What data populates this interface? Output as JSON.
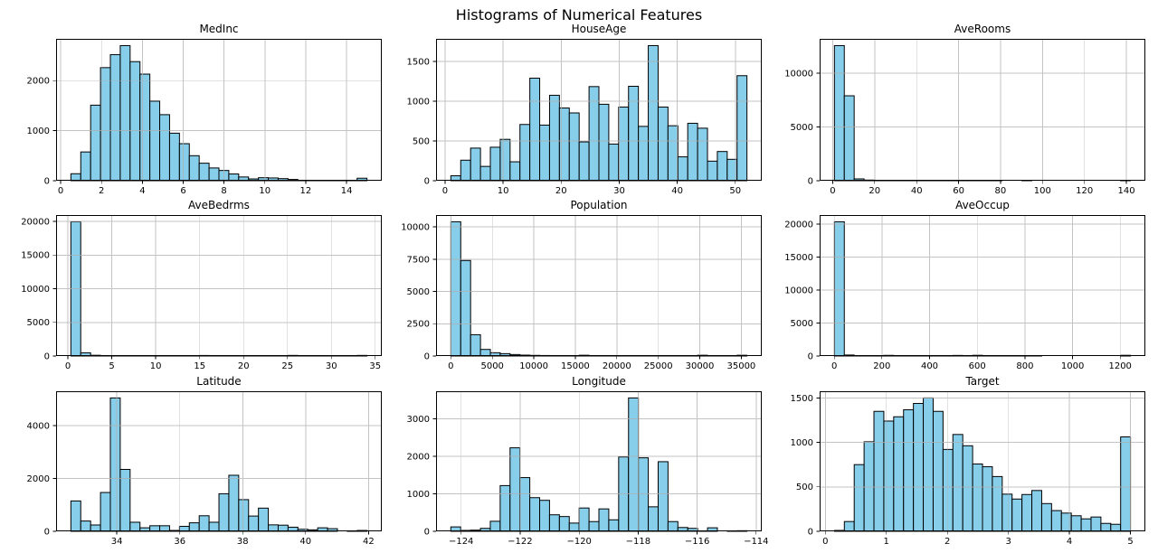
{
  "figure": {
    "title": "Histograms of Numerical Features",
    "colors": {
      "bar_fill": "#87CEEB",
      "bar_edge": "#000000",
      "grid": "#b0b0b0",
      "spine": "#000000",
      "text": "#000000",
      "background": "#ffffff"
    }
  },
  "chart_data": [
    {
      "type": "bar",
      "subtype": "histogram",
      "name": "MedInc",
      "title": "MedInc",
      "bins": 30,
      "bin_start": 0.4999,
      "bin_width": 0.48334,
      "values": [
        140,
        575,
        1510,
        2260,
        2520,
        2700,
        2380,
        2130,
        1590,
        1320,
        950,
        740,
        500,
        350,
        255,
        205,
        135,
        75,
        36,
        60,
        55,
        42,
        25,
        8,
        6,
        5,
        5,
        4,
        3,
        50
      ],
      "xlim": [
        -0.225,
        15.725
      ],
      "ylim": [
        0,
        2835
      ],
      "xticks": {
        "values": [
          0,
          2,
          4,
          6,
          8,
          10,
          12,
          14
        ],
        "labels": [
          "0",
          "2",
          "4",
          "6",
          "8",
          "10",
          "12",
          "14"
        ]
      },
      "yticks": {
        "values": [
          0,
          1000,
          2000
        ],
        "labels": [
          "0",
          "1000",
          "2000"
        ]
      },
      "grid": true,
      "legend": false
    },
    {
      "type": "bar",
      "subtype": "histogram",
      "name": "HouseAge",
      "title": "HouseAge",
      "bins": 30,
      "bin_start": 1.0,
      "bin_width": 1.7,
      "values": [
        62,
        258,
        410,
        180,
        421,
        520,
        238,
        707,
        1289,
        699,
        1074,
        914,
        852,
        488,
        1183,
        961,
        461,
        926,
        1187,
        683,
        1698,
        926,
        691,
        300,
        722,
        660,
        246,
        367,
        269,
        1320
      ],
      "xlim": [
        -1.55,
        54.55
      ],
      "ylim": [
        0,
        1783
      ],
      "xticks": {
        "values": [
          0,
          10,
          20,
          30,
          40,
          50
        ],
        "labels": [
          "0",
          "10",
          "20",
          "30",
          "40",
          "50"
        ]
      },
      "yticks": {
        "values": [
          0,
          500,
          1000,
          1500
        ],
        "labels": [
          "0",
          "500",
          "1000",
          "1500"
        ]
      },
      "grid": true,
      "legend": false
    },
    {
      "type": "bar",
      "subtype": "histogram",
      "name": "AveRooms",
      "title": "AveRooms",
      "bins": 30,
      "bin_start": 0.846,
      "bin_width": 4.7019,
      "values": [
        12550,
        7890,
        170,
        60,
        40,
        30,
        10,
        6,
        4,
        3,
        2,
        2,
        1,
        1,
        1,
        1,
        1,
        0,
        0,
        1,
        0,
        0,
        0,
        0,
        0,
        0,
        0,
        0,
        0,
        1
      ],
      "xlim": [
        -6.2,
        149.0
      ],
      "ylim": [
        0,
        13178
      ],
      "xticks": {
        "values": [
          0,
          20,
          40,
          60,
          80,
          100,
          120,
          140
        ],
        "labels": [
          "0",
          "20",
          "40",
          "60",
          "80",
          "100",
          "120",
          "140"
        ]
      },
      "yticks": {
        "values": [
          0,
          5000,
          10000
        ],
        "labels": [
          "0",
          "5000",
          "10000"
        ]
      },
      "grid": true,
      "legend": false
    },
    {
      "type": "bar",
      "subtype": "histogram",
      "name": "AveBedrms",
      "title": "AveBedrms",
      "bins": 30,
      "bin_start": 0.3333,
      "bin_width": 1.1245,
      "values": [
        19950,
        480,
        110,
        40,
        25,
        15,
        10,
        8,
        6,
        60,
        10,
        5,
        5,
        80,
        5,
        4,
        4,
        3,
        3,
        3,
        2,
        2,
        90,
        2,
        2,
        1,
        1,
        1,
        1,
        90
      ],
      "xlim": [
        -1.35,
        35.75
      ],
      "ylim": [
        0,
        20948
      ],
      "xticks": {
        "values": [
          0,
          5,
          10,
          15,
          20,
          25,
          30,
          35
        ],
        "labels": [
          "0",
          "5",
          "10",
          "15",
          "20",
          "25",
          "30",
          "35"
        ]
      },
      "yticks": {
        "values": [
          0,
          5000,
          10000,
          15000,
          20000
        ],
        "labels": [
          "0",
          "5000",
          "10000",
          "15000",
          "20000"
        ]
      },
      "grid": true,
      "legend": false
    },
    {
      "type": "bar",
      "subtype": "histogram",
      "name": "Population",
      "title": "Population",
      "bins": 30,
      "bin_start": 3.0,
      "bin_width": 1189.3,
      "values": [
        10400,
        7400,
        1650,
        510,
        255,
        185,
        115,
        70,
        50,
        40,
        30,
        25,
        20,
        60,
        15,
        10,
        8,
        6,
        5,
        4,
        4,
        3,
        3,
        2,
        2,
        60,
        1,
        1,
        1,
        60
      ],
      "xlim": [
        -1781,
        37466
      ],
      "ylim": [
        0,
        10920
      ],
      "xticks": {
        "values": [
          0,
          5000,
          10000,
          15000,
          20000,
          25000,
          30000,
          35000
        ],
        "labels": [
          "0",
          "5000",
          "10000",
          "15000",
          "20000",
          "25000",
          "30000",
          "35000"
        ]
      },
      "yticks": {
        "values": [
          0,
          2500,
          5000,
          7500,
          10000
        ],
        "labels": [
          "0",
          "2500",
          "5000",
          "7500",
          "10000"
        ]
      },
      "grid": true,
      "legend": false
    },
    {
      "type": "bar",
      "subtype": "histogram",
      "name": "AveOccup",
      "title": "AveOccup",
      "bins": 30,
      "bin_start": 0.6923,
      "bin_width": 41.4204,
      "values": [
        20350,
        150,
        20,
        10,
        8,
        100,
        5,
        4,
        3,
        3,
        2,
        2,
        90,
        2,
        110,
        1,
        1,
        1,
        1,
        1,
        1,
        0,
        0,
        0,
        0,
        0,
        0,
        0,
        0,
        110
      ],
      "xlim": [
        -61.4,
        1305.4
      ],
      "ylim": [
        0,
        21368
      ],
      "xticks": {
        "values": [
          0,
          200,
          400,
          600,
          800,
          1000,
          1200
        ],
        "labels": [
          "0",
          "200",
          "400",
          "600",
          "800",
          "1000",
          "1200"
        ]
      },
      "yticks": {
        "values": [
          0,
          5000,
          10000,
          15000,
          20000
        ],
        "labels": [
          "0",
          "5000",
          "10000",
          "15000",
          "20000"
        ]
      },
      "grid": true,
      "legend": false
    },
    {
      "type": "bar",
      "subtype": "histogram",
      "name": "Latitude",
      "title": "Latitude",
      "bins": 30,
      "bin_start": 32.54,
      "bin_width": 0.3137,
      "values": [
        1150,
        390,
        240,
        1470,
        5050,
        2344,
        344,
        133,
        211,
        211,
        33,
        189,
        322,
        589,
        344,
        1422,
        2122,
        1200,
        578,
        878,
        244,
        233,
        156,
        78,
        56,
        133,
        100,
        0,
        11,
        33
      ],
      "xlim": [
        32.07,
        42.42
      ],
      "ylim": [
        0,
        5303
      ],
      "xticks": {
        "values": [
          34,
          36,
          38,
          40,
          42
        ],
        "labels": [
          "34",
          "36",
          "38",
          "40",
          "42"
        ]
      },
      "yticks": {
        "values": [
          0,
          2000,
          4000
        ],
        "labels": [
          "0",
          "2000",
          "4000"
        ]
      },
      "grid": true,
      "legend": false
    },
    {
      "type": "bar",
      "subtype": "histogram",
      "name": "Longitude",
      "title": "Longitude",
      "bins": 30,
      "bin_start": -124.35,
      "bin_width": 0.33467,
      "values": [
        118,
        24,
        31,
        79,
        268,
        1220,
        2228,
        1433,
        898,
        827,
        441,
        394,
        220,
        622,
        260,
        598,
        307,
        1984,
        3559,
        1961,
        654,
        1858,
        260,
        102,
        79,
        8,
        94,
        0,
        8,
        16
      ],
      "xlim": [
        -124.85,
        -113.81
      ],
      "ylim": [
        0,
        3737
      ],
      "xticks": {
        "values": [
          -124,
          -122,
          -120,
          -118,
          -116,
          -114
        ],
        "labels": [
          "−124",
          "−122",
          "−120",
          "−118",
          "−116",
          "−114"
        ]
      },
      "yticks": {
        "values": [
          0,
          1000,
          2000,
          3000
        ],
        "labels": [
          "0",
          "1000",
          "2000",
          "3000"
        ]
      },
      "grid": true,
      "legend": false
    },
    {
      "type": "bar",
      "subtype": "histogram",
      "name": "Target",
      "title": "Target",
      "bins": 30,
      "bin_start": 0.14999,
      "bin_width": 0.16167,
      "values": [
        10,
        110,
        750,
        1007,
        1349,
        1240,
        1288,
        1367,
        1438,
        1500,
        1349,
        921,
        1089,
        962,
        757,
        726,
        616,
        418,
        363,
        414,
        459,
        312,
        233,
        205,
        175,
        140,
        161,
        89,
        79,
        1062
      ],
      "xlim": [
        -0.093,
        5.243
      ],
      "ylim": [
        0,
        1575
      ],
      "xticks": {
        "values": [
          0,
          1,
          2,
          3,
          4,
          5
        ],
        "labels": [
          "0",
          "1",
          "2",
          "3",
          "4",
          "5"
        ]
      },
      "yticks": {
        "values": [
          0,
          500,
          1000,
          1500
        ],
        "labels": [
          "0",
          "500",
          "1000",
          "1500"
        ]
      },
      "grid": true,
      "legend": false
    }
  ]
}
